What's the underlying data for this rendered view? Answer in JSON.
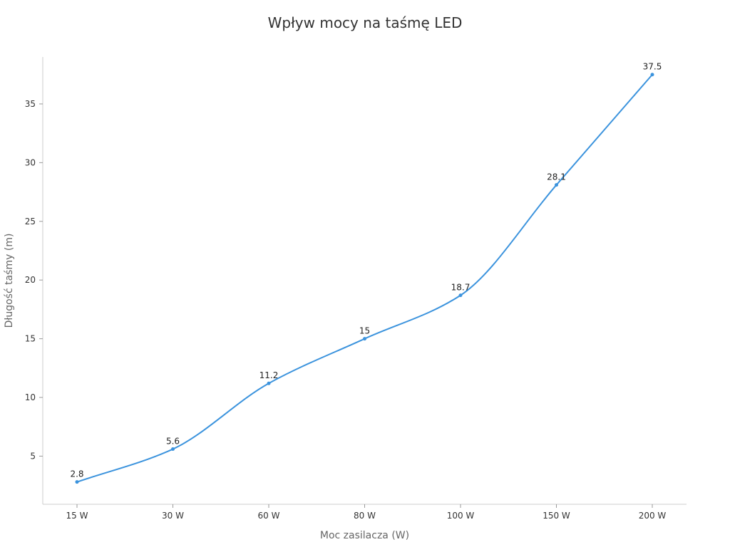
{
  "chart_data": {
    "type": "line",
    "title": "Wpływ mocy na taśmę LED",
    "xlabel": "Moc zasilacza (W)",
    "ylabel": "Długość taśmy (m)",
    "categories": [
      "15 W",
      "30 W",
      "60 W",
      "80 W",
      "100 W",
      "150 W",
      "200 W"
    ],
    "series": [
      {
        "values": [
          2.8,
          5.6,
          11.2,
          15,
          18.7,
          28.1,
          37.5
        ],
        "color": "#3b93dd"
      }
    ],
    "y_ticks": [
      5,
      10,
      15,
      20,
      25,
      30,
      35
    ],
    "ylim": [
      0.9,
      39
    ],
    "grid": false,
    "smooth": true,
    "data_labels": true
  }
}
